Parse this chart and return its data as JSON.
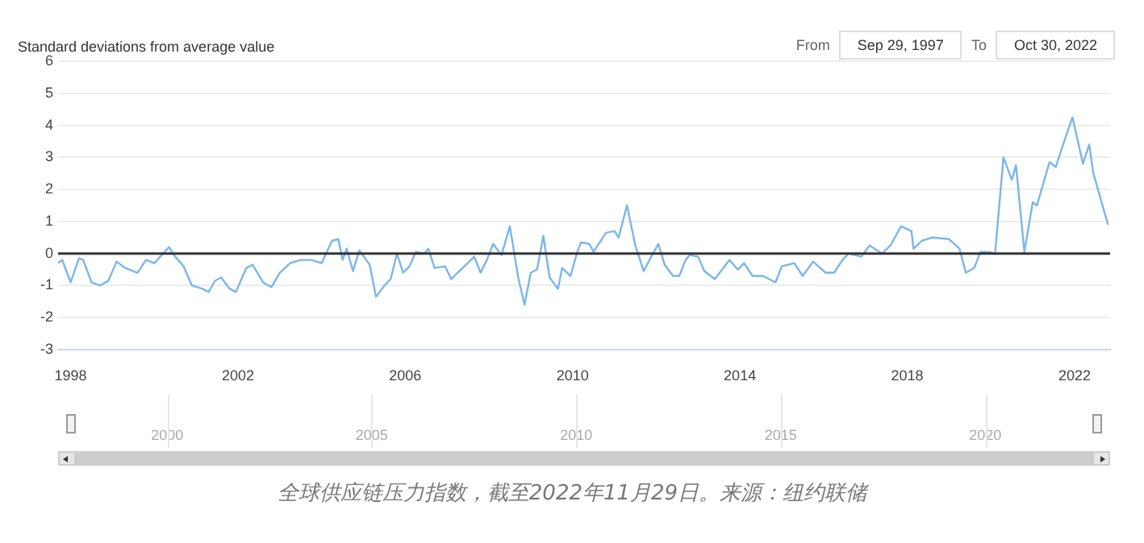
{
  "chart_data": [
    {
      "type": "line",
      "ylabel": "Standard deviations from average value",
      "xlim": [
        1997.7,
        2022.85
      ],
      "xticks": [
        1998,
        2002,
        2006,
        2010,
        2014,
        2018,
        2022
      ],
      "x2lim": [
        1997.33,
        2023.05
      ],
      "x2ticks": [
        2000,
        2005,
        2010,
        2015,
        2020
      ],
      "ylim": [
        -3,
        6
      ],
      "yticks": [
        -3,
        -2,
        -1,
        0,
        1,
        2,
        3,
        4,
        5,
        6
      ],
      "grid": "y",
      "legend": false,
      "marker": "none",
      "line_style": "solid",
      "ref_lines": [
        {
          "axis": "y",
          "value": 0,
          "color": "#333333"
        }
      ],
      "annotations": [
        "From",
        "Sep 29, 1997",
        "To",
        "Oct 30, 2022",
        "全球供应链压力指数，截至2022年11月29日。来源：纽约联储"
      ],
      "series": [
        {
          "color": "#7cb5ec",
          "x": [
            1997.7,
            1997.8,
            1998.0,
            1998.2,
            1998.3,
            1998.5,
            1998.7,
            1998.9,
            1999.1,
            1999.3,
            1999.6,
            1999.8,
            2000.0,
            2000.35,
            2000.5,
            2000.7,
            2000.9,
            2001.15,
            2001.3,
            2001.45,
            2001.6,
            2001.8,
            2001.95,
            2002.2,
            2002.35,
            2002.6,
            2002.8,
            2003.0,
            2003.25,
            2003.5,
            2003.75,
            2004.0,
            2004.25,
            2004.4,
            2004.5,
            2004.6,
            2004.75,
            2004.9,
            2005.15,
            2005.3,
            2005.5,
            2005.65,
            2005.8,
            2005.95,
            2006.1,
            2006.25,
            2006.45,
            2006.55,
            2006.7,
            2006.95,
            2007.1,
            2007.25,
            2007.45,
            2007.65,
            2007.8,
            2007.95,
            2008.1,
            2008.3,
            2008.5,
            2008.7,
            2008.85,
            2009.0,
            2009.15,
            2009.3,
            2009.45,
            2009.65,
            2009.75,
            2009.95,
            2010.1,
            2010.2,
            2010.4,
            2010.5,
            2010.8,
            2011.0,
            2011.1,
            2011.3,
            2011.5,
            2011.7,
            2011.9,
            2012.05,
            2012.2,
            2012.4,
            2012.55,
            2012.7,
            2012.8,
            2013.0,
            2013.15,
            2013.4,
            2013.75,
            2013.95,
            2014.1,
            2014.3,
            2014.55,
            2014.85,
            2015.0,
            2015.3,
            2015.5,
            2015.75,
            2016.05,
            2016.25,
            2016.45,
            2016.6,
            2016.9,
            2017.1,
            2017.4,
            2017.6,
            2017.85,
            2018.1,
            2018.15,
            2018.35,
            2018.6,
            2019.0,
            2019.25,
            2019.4,
            2019.6,
            2019.75,
            2019.95,
            2020.1,
            2020.3,
            2020.5,
            2020.6,
            2020.8,
            2021.0,
            2021.1,
            2021.4,
            2021.55,
            2021.7,
            2021.95,
            2022.2,
            2022.35,
            2022.45,
            2022.8
          ],
          "values": [
            -0.3,
            -0.2,
            -0.9,
            -0.15,
            -0.2,
            -0.9,
            -1.0,
            -0.85,
            -0.25,
            -0.45,
            -0.6,
            -0.2,
            -0.3,
            0.2,
            -0.1,
            -0.4,
            -1.0,
            -1.1,
            -1.2,
            -0.85,
            -0.75,
            -1.1,
            -1.2,
            -0.45,
            -0.35,
            -0.9,
            -1.05,
            -0.6,
            -0.3,
            -0.2,
            -0.2,
            -0.3,
            0.4,
            0.45,
            -0.2,
            0.15,
            -0.55,
            0.1,
            -0.35,
            -1.35,
            -1.0,
            -0.8,
            0.0,
            -0.6,
            -0.4,
            0.05,
            0.0,
            0.15,
            -0.45,
            -0.4,
            -0.8,
            -0.6,
            -0.35,
            -0.1,
            -0.6,
            -0.2,
            0.3,
            -0.05,
            0.85,
            -0.75,
            -1.6,
            -0.6,
            -0.5,
            0.55,
            -0.75,
            -1.1,
            -0.45,
            -0.7,
            0.0,
            0.35,
            0.3,
            0.05,
            0.65,
            0.7,
            0.5,
            1.5,
            0.25,
            -0.55,
            -0.05,
            0.3,
            -0.35,
            -0.7,
            -0.7,
            -0.2,
            -0.05,
            -0.1,
            -0.55,
            -0.8,
            -0.2,
            -0.5,
            -0.3,
            -0.7,
            -0.7,
            -0.9,
            -0.4,
            -0.3,
            -0.7,
            -0.25,
            -0.6,
            -0.6,
            -0.2,
            0.0,
            -0.1,
            0.25,
            0.0,
            0.25,
            0.85,
            0.7,
            0.15,
            0.4,
            0.5,
            0.45,
            0.15,
            -0.6,
            -0.45,
            0.05,
            0.05,
            0.0,
            3.0,
            2.3,
            2.75,
            0.05,
            1.6,
            1.5,
            2.85,
            2.7,
            3.3,
            4.25,
            2.8,
            3.4,
            2.5,
            0.9
          ]
        }
      ]
    }
  ]
}
